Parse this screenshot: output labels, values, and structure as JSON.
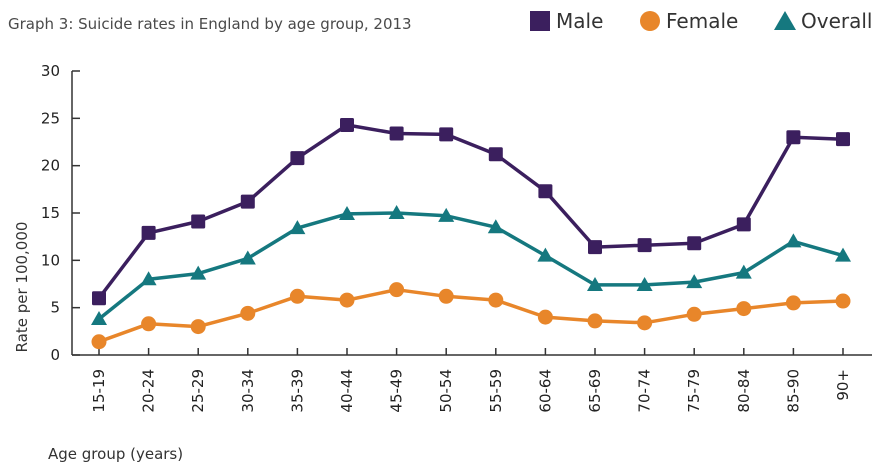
{
  "chart_data": {
    "type": "line",
    "title": "Graph 3: Suicide rates in England by age group, 2013",
    "xlabel": "Age group (years)",
    "ylabel": "Rate per 100,000",
    "ylim": [
      0,
      30
    ],
    "yticks": [
      "0",
      "5",
      "10",
      "15",
      "20",
      "25",
      "30"
    ],
    "categories": [
      "15-19",
      "20-24",
      "25-29",
      "30-34",
      "35-39",
      "40-44",
      "45-49",
      "50-54",
      "55-59",
      "60-64",
      "65-69",
      "70-74",
      "75-79",
      "80-84",
      "85-90",
      "90+"
    ],
    "grid": false,
    "legend": "top-right",
    "series": [
      {
        "name": "Male",
        "marker": "square",
        "color": "#3b1f5e",
        "values": [
          6.0,
          12.9,
          14.1,
          16.2,
          20.8,
          24.3,
          23.4,
          23.3,
          21.2,
          17.3,
          11.4,
          11.6,
          11.8,
          13.8,
          23.0,
          22.8
        ]
      },
      {
        "name": "Female",
        "marker": "circle",
        "color": "#e8862a",
        "values": [
          1.4,
          3.3,
          3.0,
          4.4,
          6.2,
          5.8,
          6.9,
          6.2,
          5.8,
          4.0,
          3.6,
          3.4,
          4.3,
          4.9,
          5.5,
          5.7
        ]
      },
      {
        "name": "Overall",
        "marker": "triangle",
        "color": "#15787f",
        "values": [
          3.8,
          8.0,
          8.6,
          10.2,
          13.4,
          14.9,
          15.0,
          14.7,
          13.5,
          10.5,
          7.4,
          7.4,
          7.7,
          8.7,
          12.0,
          10.5
        ]
      }
    ]
  }
}
